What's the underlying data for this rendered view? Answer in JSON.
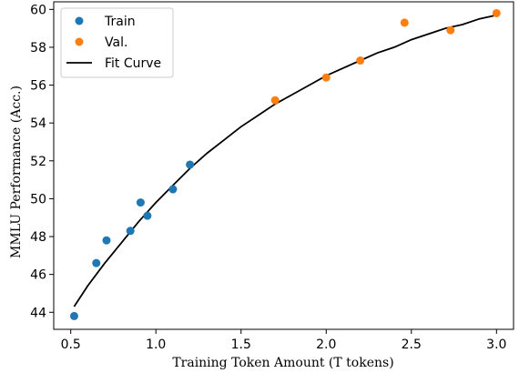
{
  "chart_data": {
    "type": "scatter",
    "xlabel": "Training Token Amount (T tokens)",
    "ylabel": "MMLU Performance (Acc.)",
    "xlim": [
      0.4,
      3.1
    ],
    "ylim": [
      43.1,
      60.4
    ],
    "x_ticks": [
      0.5,
      1.0,
      1.5,
      2.0,
      2.5,
      3.0
    ],
    "x_tick_labels": [
      "0.5",
      "1.0",
      "1.5",
      "2.0",
      "2.5",
      "3.0"
    ],
    "y_ticks": [
      44,
      46,
      48,
      50,
      52,
      54,
      56,
      58,
      60
    ],
    "y_tick_labels": [
      "44",
      "46",
      "48",
      "50",
      "52",
      "54",
      "56",
      "58",
      "60"
    ],
    "legend_position": "top-left",
    "grid": false,
    "series": [
      {
        "name": "Train",
        "kind": "scatter",
        "color": "#1f77b4",
        "x": [
          0.52,
          0.65,
          0.71,
          0.85,
          0.91,
          0.95,
          1.1,
          1.2
        ],
        "y": [
          43.8,
          46.6,
          47.8,
          48.3,
          49.8,
          49.1,
          50.5,
          51.8
        ]
      },
      {
        "name": "Val.",
        "kind": "scatter",
        "color": "#ff7f0e",
        "x": [
          1.7,
          2.0,
          2.2,
          2.46,
          2.73,
          3.0
        ],
        "y": [
          55.2,
          56.4,
          57.3,
          59.3,
          58.9,
          59.8
        ]
      },
      {
        "name": "Fit Curve",
        "kind": "line",
        "color": "#000000",
        "x": [
          0.52,
          0.6,
          0.7,
          0.8,
          0.9,
          1.0,
          1.1,
          1.2,
          1.3,
          1.4,
          1.5,
          1.6,
          1.7,
          1.8,
          1.9,
          2.0,
          2.1,
          2.2,
          2.3,
          2.4,
          2.5,
          2.6,
          2.7,
          2.8,
          2.9,
          3.0
        ],
        "y": [
          44.3,
          45.4,
          46.6,
          47.7,
          48.8,
          49.8,
          50.7,
          51.6,
          52.4,
          53.1,
          53.8,
          54.4,
          55.0,
          55.5,
          56.0,
          56.5,
          56.9,
          57.3,
          57.7,
          58.0,
          58.4,
          58.7,
          59.0,
          59.2,
          59.5,
          59.7
        ]
      }
    ]
  }
}
